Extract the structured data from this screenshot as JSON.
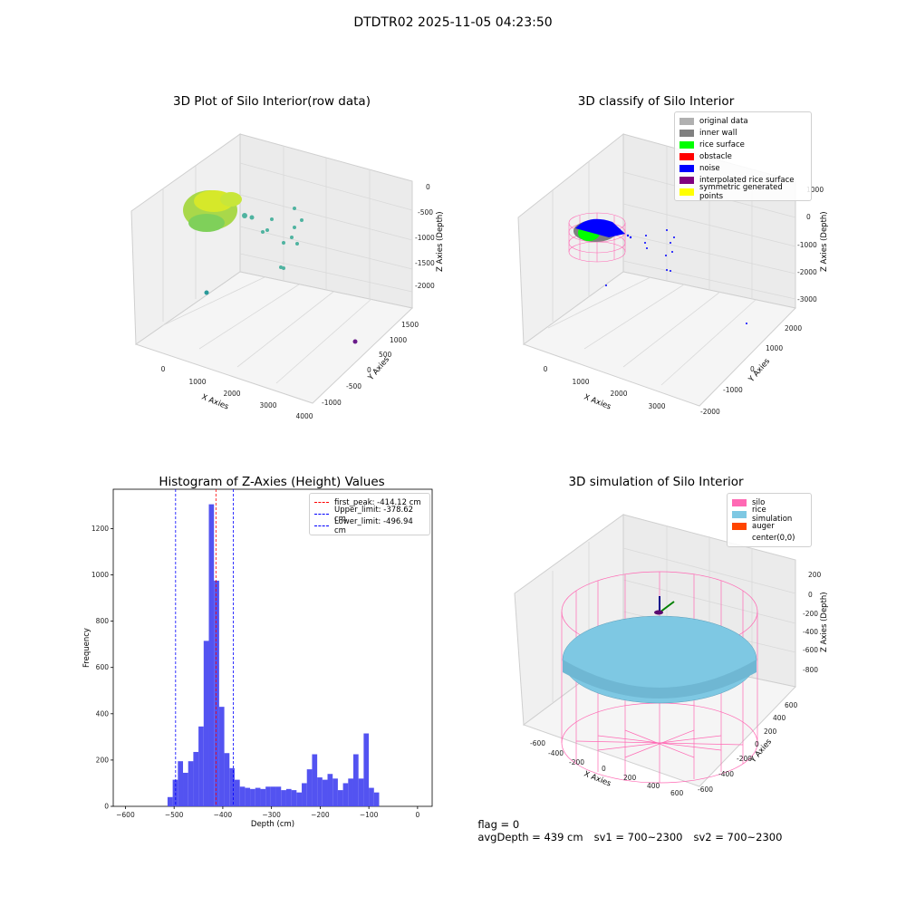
{
  "figure": {
    "title": "DTDTR02 2025-11-05 04:23:50",
    "status": {
      "flag": "flag = 0",
      "avg_depth": "avgDepth = 439 cm",
      "sv1": "sv1 = 700~2300",
      "sv2": "sv2 = 700~2300"
    }
  },
  "colors": {
    "grid": "#d9d9d9",
    "pane": "#f2f2f2",
    "hist_bar": "#4a4af0",
    "peak_line": "#ff0000",
    "limit_line": "#0000ff",
    "silo": "#ff69b4",
    "rice_sim": "#7ec8e3",
    "auger": "#ff4500"
  },
  "chart_data": [
    {
      "type": "scatter3d",
      "title": "3D Plot of Silo Interior(row data)",
      "xlabel": "X Axies",
      "ylabel": "Y Axies",
      "zlabel": "Z Axies (Depth)",
      "xticks": [
        "0",
        "1000",
        "2000",
        "3000",
        "4000"
      ],
      "yticks": [
        "-1000",
        "-500",
        "0",
        "500",
        "1000",
        "1500"
      ],
      "zticks": [
        "0",
        "-500",
        "-1000",
        "-1500",
        "-2000"
      ],
      "description_points": "dense cluster of surface points colored yellow-green near X≈0, scattered teal outliers, one purple point far right"
    },
    {
      "type": "scatter3d",
      "title": "3D classify of Silo Interior",
      "xlabel": "X Axies",
      "ylabel": "Y Axies",
      "zlabel": "Z Axies (Depth)",
      "xticks": [
        "0",
        "1000",
        "2000",
        "3000"
      ],
      "yticks": [
        "-2000",
        "-1000",
        "0",
        "1000",
        "2000"
      ],
      "zticks": [
        "1000",
        "0",
        "-1000",
        "-2000",
        "-3000"
      ],
      "legend": [
        {
          "label": "original data",
          "color": "#b0b0b0"
        },
        {
          "label": "inner wall",
          "color": "#808080"
        },
        {
          "label": "rice surface",
          "color": "#00ff00"
        },
        {
          "label": "obstacle",
          "color": "#ff0000"
        },
        {
          "label": "noise",
          "color": "#0000ff"
        },
        {
          "label": "interpolated rice surface",
          "color": "#800080"
        },
        {
          "label": "symmetric generated points",
          "color": "#ffff00"
        }
      ]
    },
    {
      "type": "bar",
      "title": "Histogram of Z-Axies (Height) Values",
      "xlabel": "Depth (cm)",
      "ylabel": "Frequency",
      "xlim": [
        -625,
        30
      ],
      "ylim": [
        0,
        1370
      ],
      "xticks": [
        -600,
        -500,
        -400,
        -300,
        -200,
        -100,
        0
      ],
      "yticks": [
        0,
        200,
        400,
        600,
        800,
        1000,
        1200
      ],
      "bin_width": 10.6,
      "bins_start": -513.5,
      "values": [
        40,
        115,
        195,
        145,
        195,
        235,
        345,
        715,
        1305,
        975,
        430,
        230,
        165,
        115,
        85,
        80,
        75,
        80,
        75,
        85,
        85,
        85,
        70,
        75,
        70,
        60,
        100,
        160,
        225,
        125,
        115,
        140,
        120,
        70,
        100,
        120,
        225,
        120,
        315,
        80,
        60
      ],
      "vlines": [
        {
          "label": "first_peak: -414.12 cm",
          "x": -414.12,
          "color": "#ff0000"
        },
        {
          "label": "Upper_limit: -378.62 cm",
          "x": -378.62,
          "color": "#0000ff"
        },
        {
          "label": "Lower_limit: -496.94 cm",
          "x": -496.94,
          "color": "#0000ff"
        }
      ]
    },
    {
      "type": "surface3d",
      "title": "3D simulation of Silo Interior",
      "xlabel": "X Axies",
      "ylabel": "Y Axies",
      "zlabel": "Z Axies (Depth)",
      "xticks": [
        "-600",
        "-400",
        "-200",
        "0",
        "200",
        "400",
        "600"
      ],
      "yticks": [
        "-600",
        "-400",
        "-200",
        "0",
        "200",
        "400",
        "600"
      ],
      "zticks": [
        "200",
        "0",
        "-200",
        "-400",
        "-600",
        "-800"
      ],
      "legend": [
        {
          "label": "silo",
          "color": "#ff69b4"
        },
        {
          "label": "rice simulation",
          "color": "#7ec8e3"
        },
        {
          "label": "auger",
          "color": "#ff4500"
        },
        {
          "label": "center(0,0)",
          "color": "#ffffff"
        }
      ]
    }
  ]
}
